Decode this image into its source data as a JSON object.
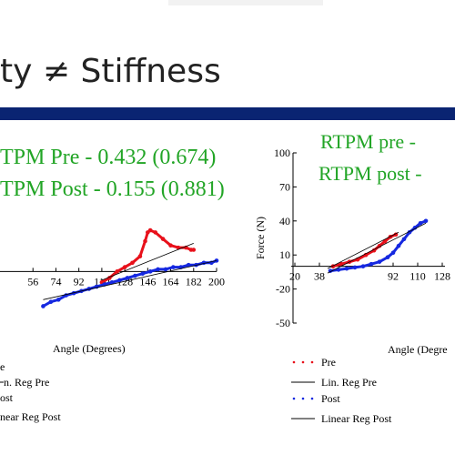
{
  "slide": {
    "title": "ty ≠ Stiffness",
    "bar_color": "#0a2472"
  },
  "chart_data": [
    {
      "type": "scatter",
      "title": "",
      "xlabel": "Angle (Degrees)",
      "ylabel": "",
      "annotations": [
        "TPM Pre - 0.432 (0.674)",
        "TPM Post - 0.155 (0.881)"
      ],
      "xticks": [
        56,
        74,
        92,
        110,
        128,
        146,
        164,
        182,
        200
      ],
      "xlim": [
        38,
        200
      ],
      "ylim": [
        -20,
        40
      ],
      "legend": [
        "e",
        "n. Reg Pre",
        "ost",
        "near Reg Post"
      ],
      "legend_position": "bottom-left",
      "colors": {
        "pre": "#e8101a",
        "post": "#1528e0",
        "annotation": "#22a526"
      },
      "series": [
        {
          "name": "Pre",
          "kind": "points",
          "x": [
            110,
            116,
            122,
            128,
            134,
            140,
            144,
            146,
            148,
            152,
            158,
            164,
            170,
            176,
            180,
            182
          ],
          "y": [
            -5,
            -3,
            0,
            2,
            4,
            7,
            14,
            18,
            19,
            18,
            15,
            12,
            11,
            11,
            10,
            10
          ]
        },
        {
          "name": "Lin. Reg Pre",
          "kind": "line",
          "x": [
            110,
            182
          ],
          "y": [
            -4,
            13
          ]
        },
        {
          "name": "Post",
          "kind": "points",
          "x": [
            64,
            70,
            76,
            82,
            88,
            94,
            100,
            106,
            112,
            118,
            124,
            130,
            136,
            142,
            148,
            154,
            160,
            166,
            172,
            178,
            184,
            190,
            196,
            200
          ],
          "y": [
            -16,
            -14,
            -13,
            -11,
            -10,
            -9,
            -8,
            -7,
            -6,
            -5,
            -4,
            -3,
            -2,
            -1,
            0,
            1,
            1,
            2,
            2,
            3,
            3,
            4,
            4,
            5
          ]
        },
        {
          "name": "Linear Reg Post",
          "kind": "line",
          "x": [
            64,
            200
          ],
          "y": [
            -13,
            5
          ]
        }
      ]
    },
    {
      "type": "scatter",
      "title": "",
      "xlabel": "Angle (Degre",
      "ylabel": "Force (N)",
      "annotations": [
        "RTPM pre -",
        "RTPM post -"
      ],
      "xticks": [
        20,
        38,
        92,
        110,
        128
      ],
      "yticks": [
        -50,
        -20,
        10,
        40,
        70,
        100
      ],
      "xlim": [
        20,
        130
      ],
      "ylim": [
        -50,
        100
      ],
      "legend": [
        "Pre",
        "Lin. Reg Pre",
        "Post",
        "Linear Reg Post"
      ],
      "legend_position": "bottom-left",
      "series": [
        {
          "name": "Pre",
          "kind": "points",
          "x": [
            48,
            54,
            60,
            66,
            72,
            78,
            82,
            86,
            90,
            94
          ],
          "y": [
            0,
            2,
            4,
            6,
            10,
            14,
            18,
            22,
            26,
            28
          ]
        },
        {
          "name": "Lin. Reg Pre",
          "kind": "line",
          "x": [
            44,
            96
          ],
          "y": [
            -2,
            30
          ]
        },
        {
          "name": "Post",
          "kind": "points",
          "x": [
            46,
            52,
            58,
            64,
            70,
            76,
            82,
            88,
            92,
            96,
            100,
            104,
            108,
            112,
            116
          ],
          "y": [
            -4,
            -3,
            -2,
            -1,
            0,
            2,
            4,
            8,
            12,
            18,
            24,
            30,
            34,
            38,
            40
          ]
        },
        {
          "name": "Linear Reg Post",
          "kind": "line",
          "x": [
            44,
            116
          ],
          "y": [
            -6,
            38
          ]
        }
      ]
    }
  ]
}
